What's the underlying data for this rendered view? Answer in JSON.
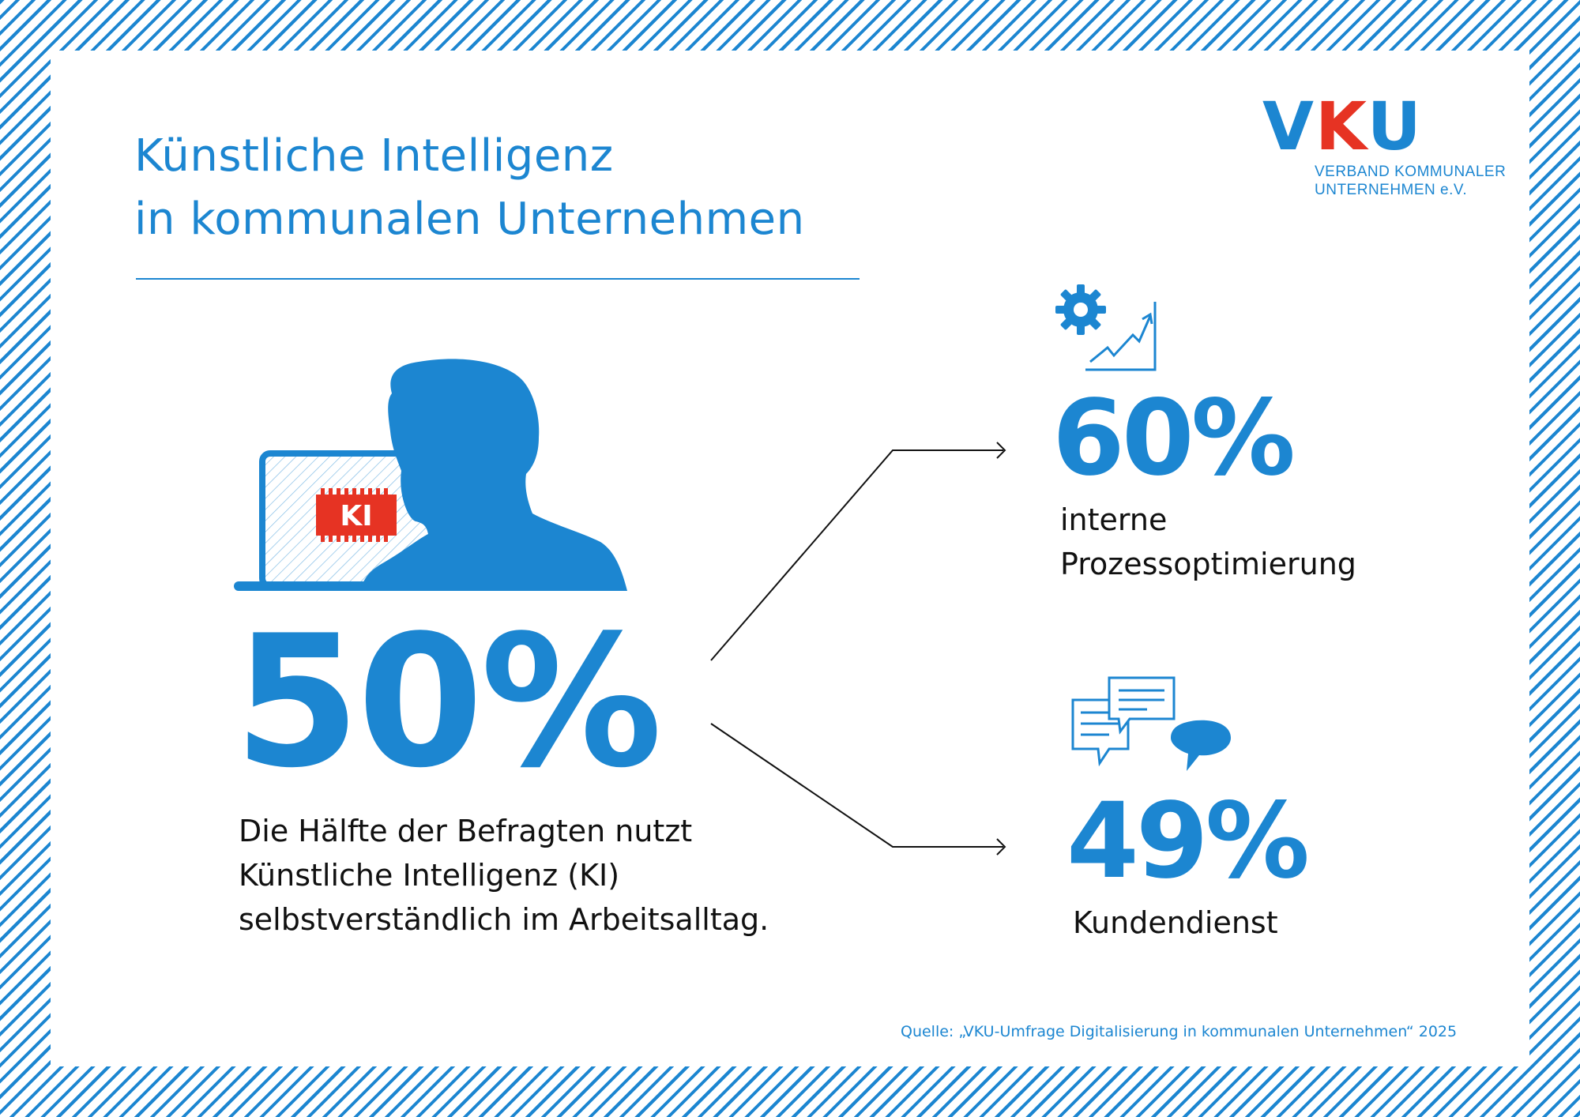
{
  "title": {
    "line1": "Künstliche Intelligenz",
    "line2": "in kommunalen Unternehmen"
  },
  "logo": {
    "letter_v": "V",
    "letter_k": "K",
    "letter_u": "U",
    "line1": "VERBAND KOMMUNALER",
    "line2": "UNTERNEHMEN e.V."
  },
  "main_stat": {
    "value": "50%",
    "desc_line1": "Die Hälfte der Befragten nutzt",
    "desc_line2": "Künstliche Intelligenz (KI)",
    "desc_line3": "selbstverständlich im Arbeitsalltag."
  },
  "illustration": {
    "chip_label": "KI"
  },
  "stat_process": {
    "value": "60%",
    "label_line1": "interne",
    "label_line2": "Prozessoptimierung",
    "icon": "gear-growth-chart-icon"
  },
  "stat_service": {
    "value": "49%",
    "label": "Kundendienst",
    "icon": "speech-bubbles-icon"
  },
  "source": "Quelle: „VKU-Umfrage Digitalisierung in kommunalen Unternehmen“ 2025",
  "colors": {
    "brand_blue": "#1c86d1",
    "accent_red": "#e63323",
    "text": "#111111"
  }
}
